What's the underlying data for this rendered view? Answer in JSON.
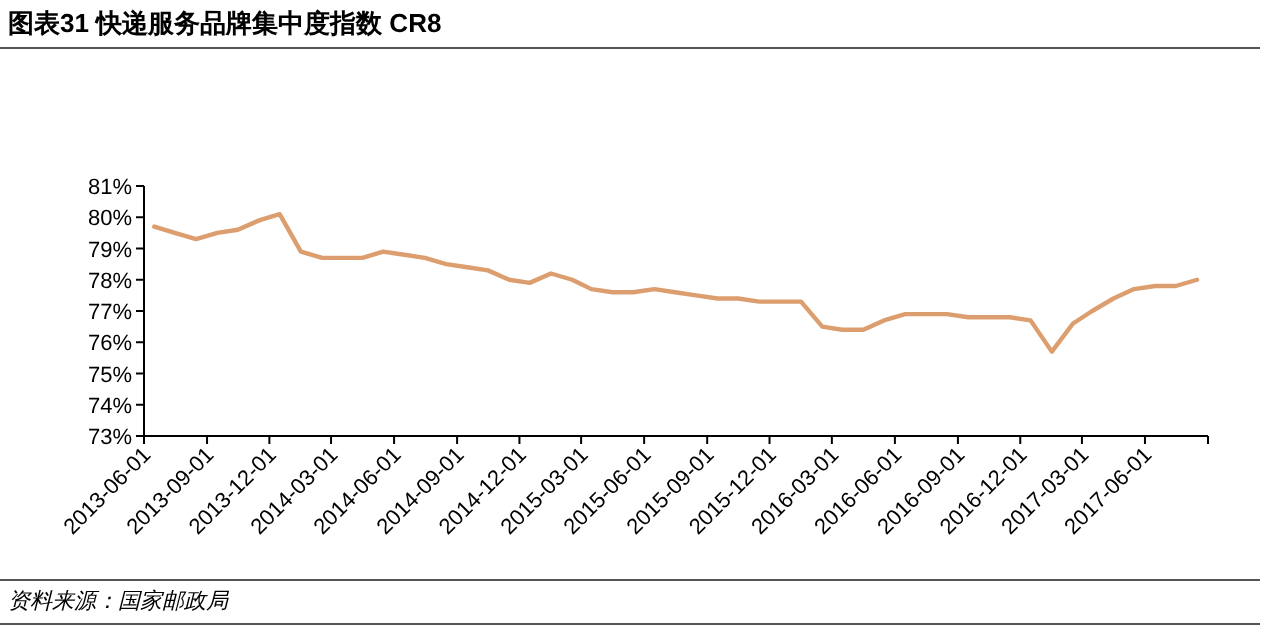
{
  "chart_data": {
    "type": "line",
    "title": "图表31    快递服务品牌集中度指数 CR8",
    "annotations": [
      "资料来源：国家邮政局"
    ],
    "x": [
      "2013-06-16",
      "2013-07-16",
      "2013-08-16",
      "2013-09-16",
      "2013-10-16",
      "2013-11-16",
      "2013-12-16",
      "2014-01-16",
      "2014-02-16",
      "2014-03-16",
      "2014-04-16",
      "2014-05-16",
      "2014-06-16",
      "2014-07-16",
      "2014-08-16",
      "2014-09-16",
      "2014-10-16",
      "2014-11-16",
      "2014-12-16",
      "2015-01-16",
      "2015-02-16",
      "2015-03-16",
      "2015-04-16",
      "2015-05-16",
      "2015-06-16",
      "2015-07-16",
      "2015-08-16",
      "2015-09-16",
      "2015-10-16",
      "2015-11-16",
      "2015-12-16",
      "2016-01-16",
      "2016-02-16",
      "2016-03-16",
      "2016-04-16",
      "2016-05-16",
      "2016-06-16",
      "2016-07-16",
      "2016-08-16",
      "2016-09-16",
      "2016-10-16",
      "2016-11-16",
      "2016-12-16",
      "2017-01-16",
      "2017-02-16",
      "2017-03-16",
      "2017-04-16",
      "2017-05-16",
      "2017-06-16",
      "2017-07-16",
      "2017-08-16"
    ],
    "series": [
      {
        "color": "#dc9e6e",
        "values": [
          79.7,
          79.5,
          79.3,
          79.5,
          79.6,
          79.9,
          80.1,
          78.9,
          78.7,
          78.7,
          78.7,
          78.9,
          78.8,
          78.7,
          78.5,
          78.4,
          78.3,
          78.0,
          77.9,
          78.2,
          78.0,
          77.7,
          77.6,
          77.6,
          77.7,
          77.6,
          77.5,
          77.4,
          77.4,
          77.3,
          77.3,
          77.3,
          76.5,
          76.4,
          76.4,
          76.7,
          76.9,
          76.9,
          76.9,
          76.8,
          76.8,
          76.8,
          76.7,
          75.7,
          76.6,
          77.0,
          77.4,
          77.7,
          77.8,
          77.8,
          78.0
        ]
      }
    ],
    "xlim": [
      "2013-06-01",
      "2017-09-01"
    ],
    "ylim": [
      73,
      81
    ],
    "xticks": [
      "2013-06-01",
      "2013-09-01",
      "2013-12-01",
      "2014-03-01",
      "2014-06-01",
      "2014-09-01",
      "2014-12-01",
      "2015-03-01",
      "2015-06-01",
      "2015-09-01",
      "2015-12-01",
      "2016-03-01",
      "2016-06-01",
      "2016-09-01",
      "2016-12-01",
      "2017-03-01",
      "2017-06-01",
      {
        "value": "2017-09-01",
        "label": null
      }
    ],
    "yticks": [
      {
        "value": 73,
        "label": "73%"
      },
      {
        "value": 74,
        "label": "74%"
      },
      {
        "value": 75,
        "label": "75%"
      },
      {
        "value": 76,
        "label": "76%"
      },
      {
        "value": 77,
        "label": "77%"
      },
      {
        "value": 78,
        "label": "78%"
      },
      {
        "value": 79,
        "label": "79%"
      },
      {
        "value": 80,
        "label": "80%"
      },
      {
        "value": 81,
        "label": "81%"
      }
    ]
  }
}
